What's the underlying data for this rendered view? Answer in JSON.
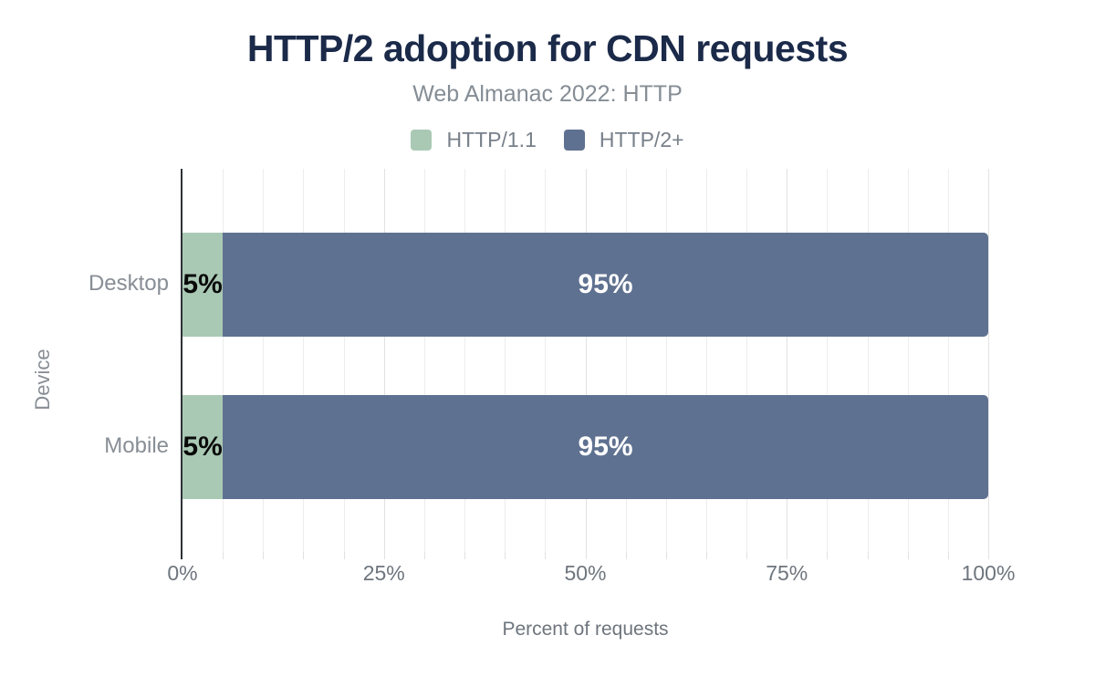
{
  "chart_data": {
    "type": "bar",
    "orientation": "horizontal",
    "stacked": true,
    "title": "HTTP/2 adoption for CDN requests",
    "subtitle": "Web Almanac 2022: HTTP",
    "xlabel": "Percent of requests",
    "ylabel": "Device",
    "categories": [
      "Desktop",
      "Mobile"
    ],
    "series": [
      {
        "name": "HTTP/1.1",
        "color": "#aac9b5",
        "values": [
          5,
          5
        ],
        "labels": [
          "5%",
          "5%"
        ]
      },
      {
        "name": "HTTP/2+",
        "color": "#5f7190",
        "values": [
          95,
          95
        ],
        "labels": [
          "95%",
          "95%"
        ]
      }
    ],
    "xlim": [
      0,
      100
    ],
    "x_ticks": [
      {
        "label": "0%",
        "value": 0
      },
      {
        "label": "25%",
        "value": 25
      },
      {
        "label": "50%",
        "value": 50
      },
      {
        "label": "75%",
        "value": 75
      },
      {
        "label": "100%",
        "value": 100
      }
    ],
    "grid": {
      "direction": "vertical",
      "minor_step": 5,
      "major_step": 25
    },
    "legend_position": "top"
  },
  "colors": {
    "background": "#ffffff",
    "title": "#1b2a49",
    "subtitle": "#858d95",
    "legend_text": "#78808a",
    "category_text": "#888e95",
    "axis_text": "#6e757d",
    "grid_minor": "#ededed",
    "grid_major": "#e2e2e2",
    "axis_line": "#2d3135",
    "bar_label_dark": "#0a0a0a",
    "bar_label_light": "#ffffff"
  }
}
